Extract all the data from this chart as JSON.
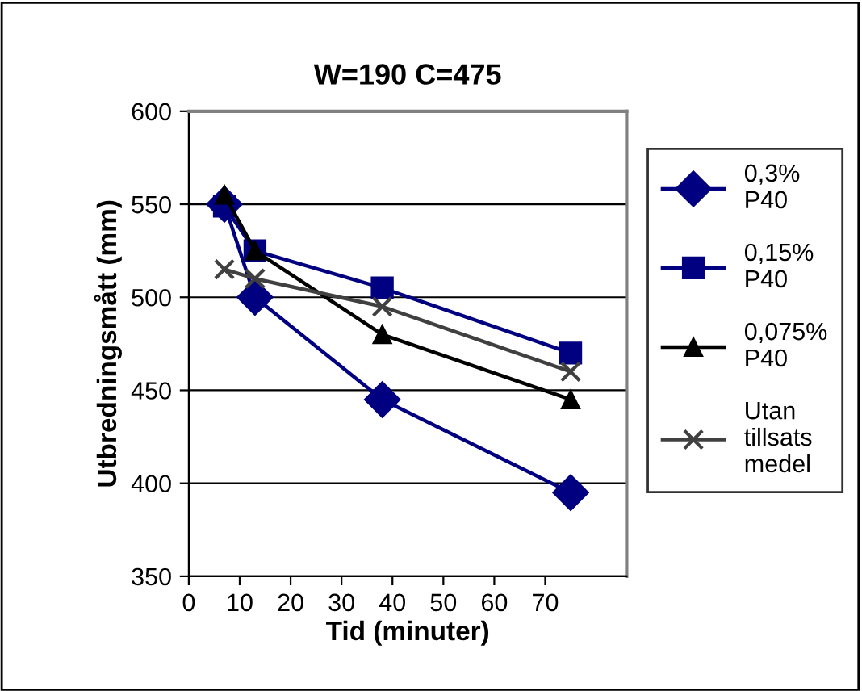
{
  "chart_data": {
    "type": "line",
    "title": "W=190 C=475",
    "xlabel": "Tid (minuter)",
    "ylabel": "Utbredningsmått (mm)",
    "xlim": [
      0,
      86
    ],
    "xticks": [
      0,
      10,
      20,
      30,
      40,
      50,
      60,
      70
    ],
    "ylim": [
      350,
      600
    ],
    "yticks": [
      350,
      400,
      450,
      500,
      550,
      600
    ],
    "grid": "y",
    "legend": "right",
    "series": [
      {
        "name": "0,3%\nP40",
        "color": "#000080",
        "marker": "diamond",
        "x": [
          7,
          13,
          38,
          75
        ],
        "values": [
          550,
          500,
          445,
          395
        ]
      },
      {
        "name": "0,15%\nP40",
        "color": "#000080",
        "marker": "square",
        "x": [
          7,
          13,
          38,
          75
        ],
        "values": [
          549,
          525,
          505,
          470
        ]
      },
      {
        "name": "0,075%\nP40",
        "color": "#000000",
        "marker": "triangle",
        "x": [
          7,
          13,
          38,
          75
        ],
        "values": [
          555,
          525,
          480,
          445
        ]
      },
      {
        "name": "Utan\ntillsats\nmedel",
        "color": "#404040",
        "marker": "cross",
        "x": [
          7,
          13,
          38,
          75
        ],
        "values": [
          515,
          510,
          495,
          460
        ]
      }
    ]
  }
}
